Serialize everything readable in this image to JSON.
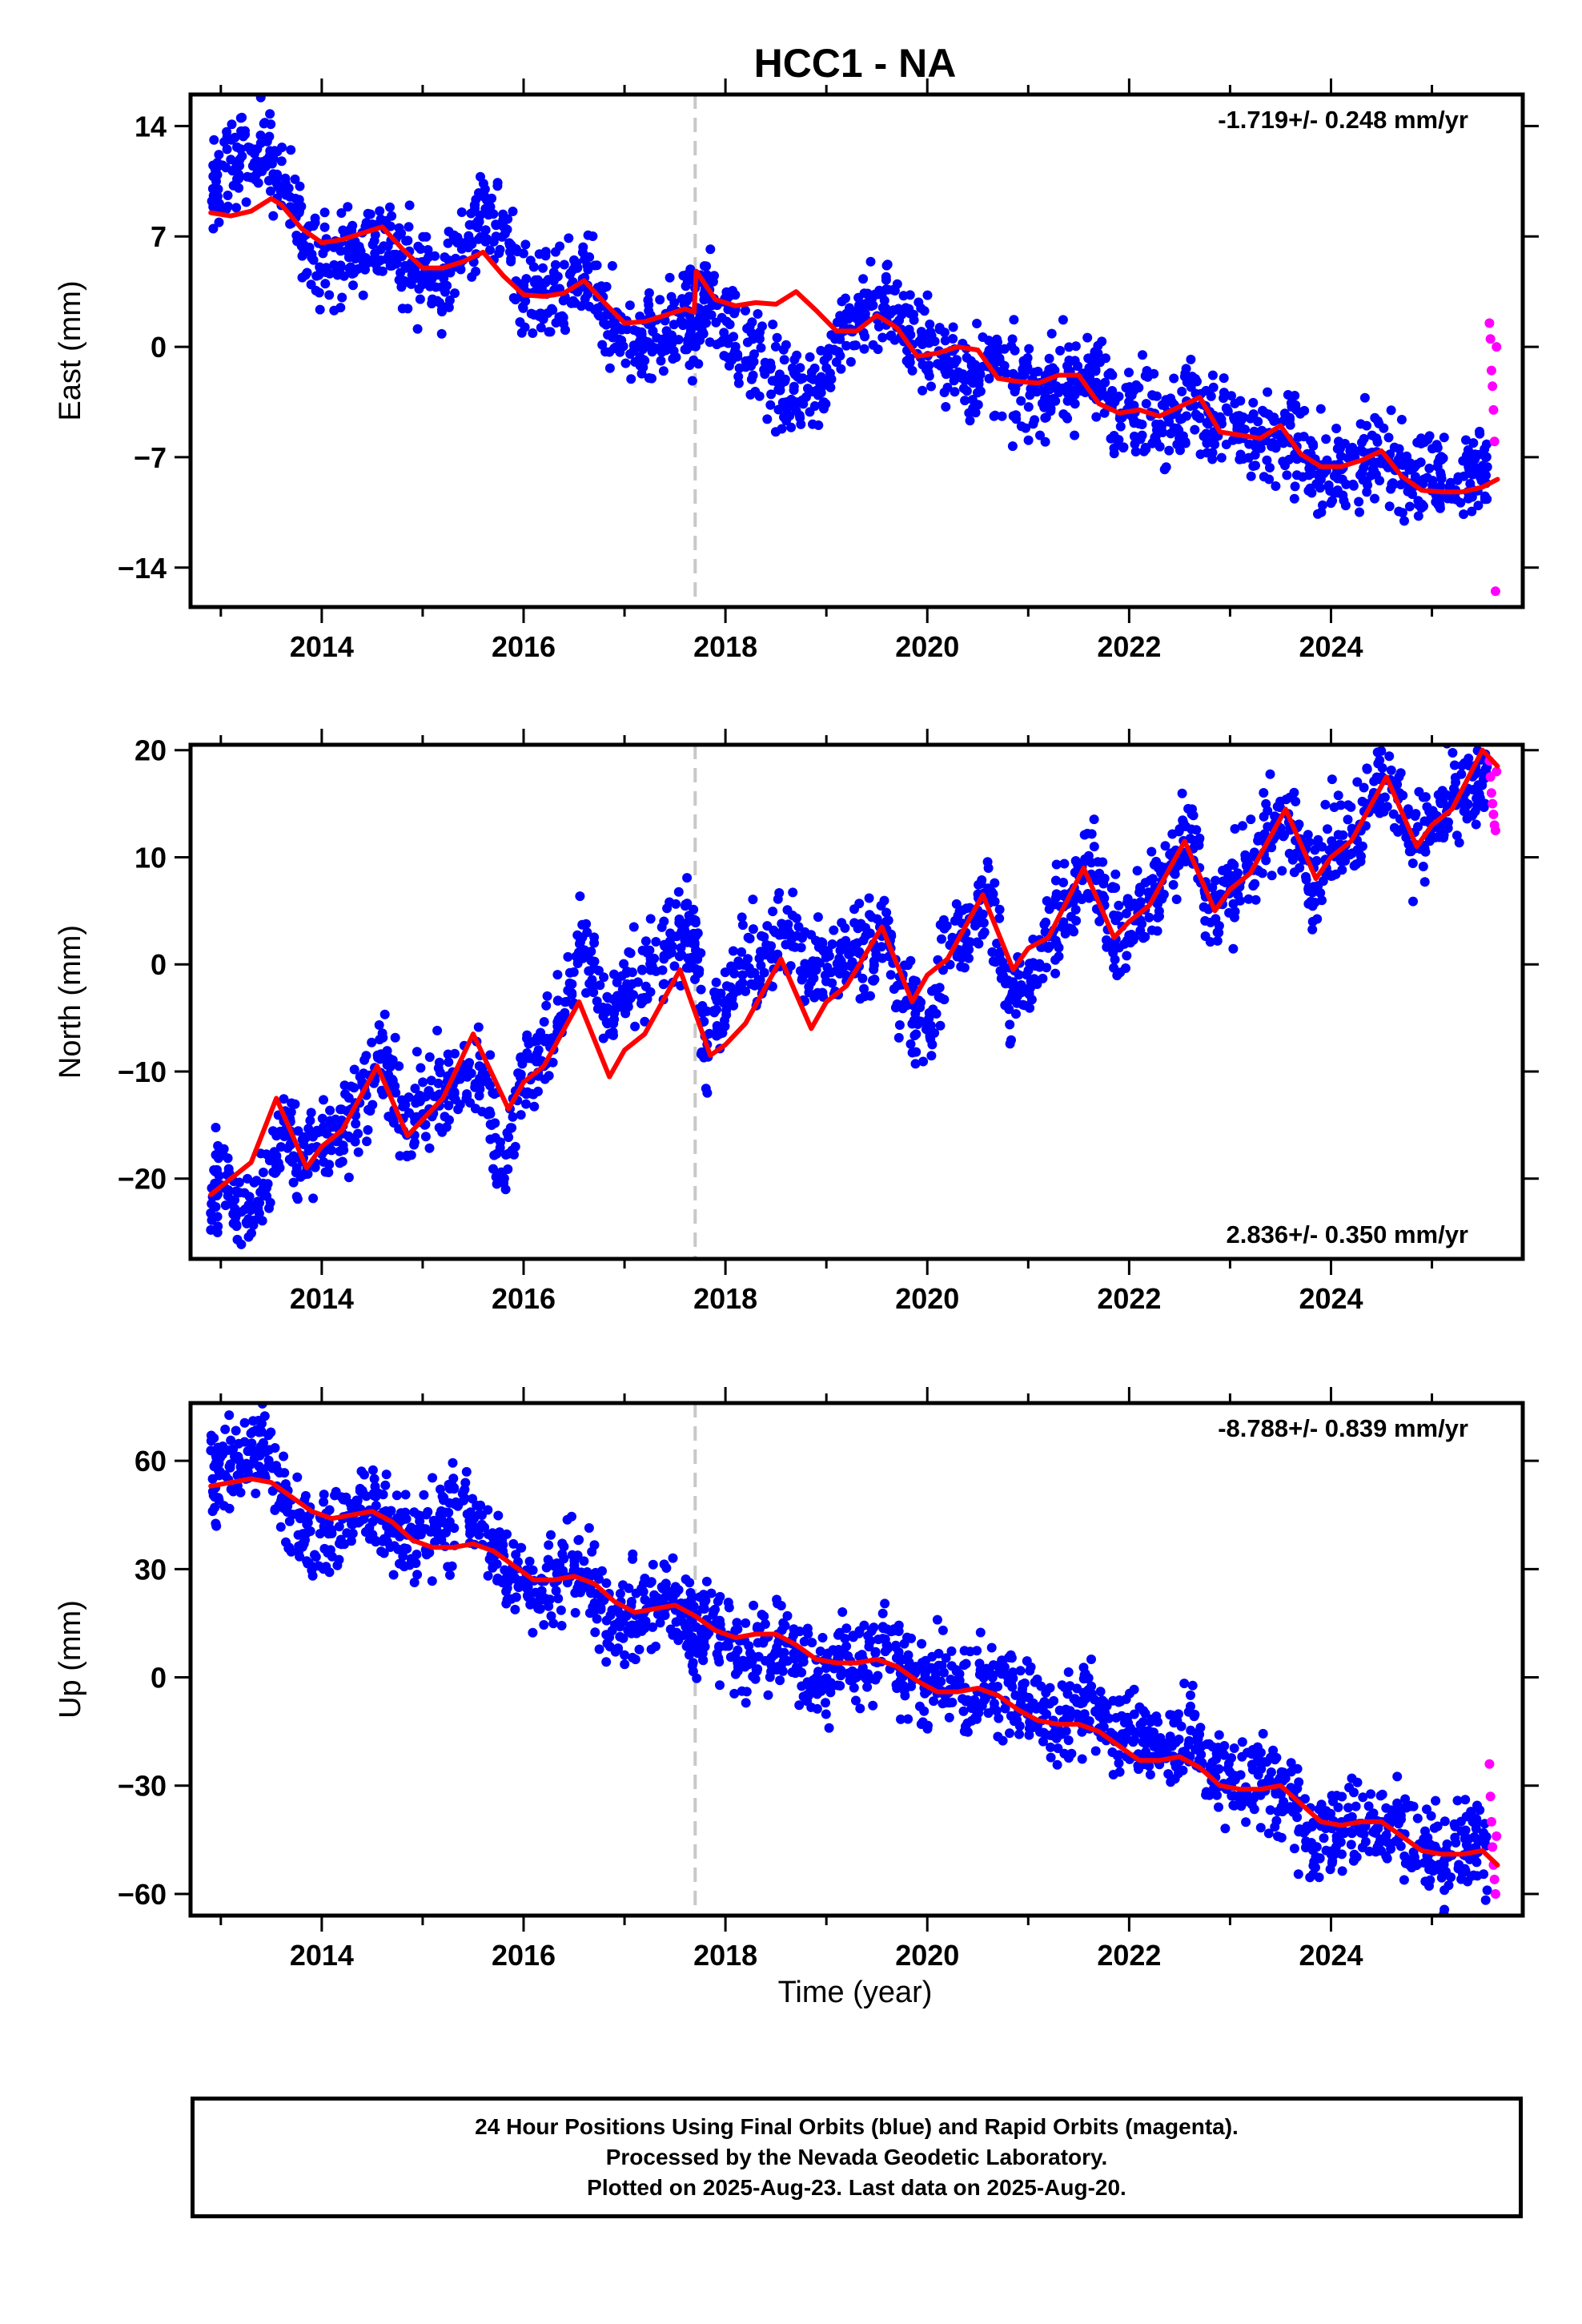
{
  "title": "HCC1 - NA",
  "xlabel": "Time (year)",
  "colors": {
    "final_orbits": "#0000ff",
    "rapid_orbits": "#ff00ff",
    "model": "#ff0000",
    "event_line": "#c8c8c8"
  },
  "footer": {
    "line1": "24 Hour Positions Using Final Orbits (blue) and Rapid Orbits (magenta).",
    "line2": "Processed by the Nevada Geodetic Laboratory.",
    "line3": "Plotted on 2025-Aug-23. Last data on 2025-Aug-20."
  },
  "chart_data": [
    {
      "type": "scatter",
      "panel": "east",
      "ylabel": "East (mm)",
      "rate_label": "-1.719+/- 0.248 mm/yr",
      "rate_position": "top-right",
      "xlim": [
        2012.7,
        2025.9
      ],
      "ylim": [
        -16.5,
        16
      ],
      "xticks": [
        2014,
        2016,
        2018,
        2020,
        2022,
        2024
      ],
      "yticks": [
        14,
        7,
        0,
        -7,
        -14
      ],
      "ytick_labels": [
        "14",
        "7",
        "0",
        "−7",
        "−14"
      ],
      "event_lines": [
        2017.7
      ],
      "series": [
        {
          "name": "Final Orbits (blue)",
          "x": [
            2012.9,
            2013.0,
            2013.2,
            2013.4,
            2013.6,
            2013.8,
            2014.0,
            2014.2,
            2014.4,
            2014.6,
            2014.8,
            2015.0,
            2015.2,
            2015.4,
            2015.6,
            2015.8,
            2016.0,
            2016.2,
            2016.4,
            2016.6,
            2016.8,
            2017.0,
            2017.2,
            2017.4,
            2017.6,
            2017.7,
            2017.8,
            2018.0,
            2018.2,
            2018.4,
            2018.6,
            2018.8,
            2019.0,
            2019.2,
            2019.4,
            2019.6,
            2019.8,
            2020.0,
            2020.2,
            2020.4,
            2020.6,
            2020.8,
            2021.0,
            2021.2,
            2021.4,
            2021.6,
            2021.8,
            2022.0,
            2022.2,
            2022.4,
            2022.6,
            2022.8,
            2023.0,
            2023.2,
            2023.4,
            2023.6,
            2023.8,
            2024.0,
            2024.2,
            2024.4,
            2024.6,
            2024.8,
            2025.0,
            2025.2,
            2025.4,
            2025.55
          ],
          "y": [
            9.5,
            10.5,
            12.5,
            12.5,
            10.5,
            7.5,
            5.5,
            5.5,
            6.5,
            7.0,
            5.5,
            4.5,
            4.5,
            6.0,
            9.0,
            7.0,
            3.5,
            3.0,
            3.0,
            4.5,
            2.0,
            0.8,
            0.5,
            1.0,
            1.8,
            1.0,
            3.5,
            1.5,
            0.0,
            -1.5,
            -2.5,
            -3.0,
            -1.5,
            1.0,
            2.5,
            3.0,
            1.0,
            0.0,
            -1.0,
            -2.0,
            -1.0,
            -2.5,
            -2.5,
            -3.0,
            -2.0,
            -2.0,
            -3.0,
            -4.0,
            -4.0,
            -4.5,
            -3.5,
            -4.5,
            -5.0,
            -6.0,
            -6.5,
            -5.5,
            -7.5,
            -8.5,
            -8.0,
            -7.0,
            -6.5,
            -8.5,
            -8.0,
            -9.0,
            -8.0,
            -7.5
          ]
        },
        {
          "name": "Rapid Orbits (magenta)",
          "x": [
            2025.57,
            2025.58,
            2025.59,
            2025.6,
            2025.61,
            2025.62,
            2025.63,
            2025.64
          ],
          "y": [
            1.5,
            0.5,
            -1.5,
            -2.5,
            -4.0,
            -6.0,
            -15.5,
            0.0
          ]
        },
        {
          "name": "Model",
          "type": "line",
          "x": [
            2012.9,
            2013.1,
            2013.3,
            2013.5,
            2013.6,
            2013.8,
            2014.0,
            2014.2,
            2014.4,
            2014.6,
            2014.8,
            2015.0,
            2015.2,
            2015.4,
            2015.6,
            2015.8,
            2016.0,
            2016.2,
            2016.4,
            2016.6,
            2016.8,
            2017.0,
            2017.2,
            2017.4,
            2017.6,
            2017.69,
            2017.71,
            2017.9,
            2018.1,
            2018.3,
            2018.5,
            2018.7,
            2018.9,
            2019.1,
            2019.3,
            2019.5,
            2019.7,
            2019.9,
            2020.1,
            2020.3,
            2020.5,
            2020.7,
            2020.9,
            2021.1,
            2021.3,
            2021.5,
            2021.7,
            2021.9,
            2022.1,
            2022.3,
            2022.5,
            2022.7,
            2022.9,
            2023.1,
            2023.3,
            2023.5,
            2023.7,
            2023.9,
            2024.1,
            2024.3,
            2024.5,
            2024.7,
            2024.9,
            2025.1,
            2025.3,
            2025.5,
            2025.65
          ],
          "y": [
            8.5,
            8.3,
            8.6,
            9.4,
            9.0,
            7.5,
            6.6,
            6.8,
            7.2,
            7.6,
            6.2,
            5.0,
            5.0,
            5.4,
            6.0,
            4.5,
            3.3,
            3.2,
            3.4,
            4.2,
            2.8,
            1.5,
            1.6,
            2.0,
            2.4,
            2.2,
            4.8,
            3.0,
            2.6,
            2.8,
            2.7,
            3.5,
            2.3,
            1.0,
            1.0,
            2.0,
            1.2,
            -0.6,
            -0.4,
            0.0,
            -0.2,
            -2.0,
            -2.2,
            -2.3,
            -1.8,
            -1.8,
            -3.6,
            -4.2,
            -4.0,
            -4.4,
            -3.8,
            -3.2,
            -5.4,
            -5.6,
            -5.8,
            -5.0,
            -6.8,
            -7.6,
            -7.6,
            -7.2,
            -6.6,
            -8.2,
            -9.1,
            -9.2,
            -9.2,
            -8.9,
            -8.4
          ]
        }
      ]
    },
    {
      "type": "scatter",
      "panel": "north",
      "ylabel": "North (mm)",
      "rate_label": "2.836+/- 0.350 mm/yr",
      "rate_position": "bottom-right",
      "xlim": [
        2012.7,
        2025.9
      ],
      "ylim": [
        -27.5,
        20.5
      ],
      "xticks": [
        2014,
        2016,
        2018,
        2020,
        2022,
        2024
      ],
      "yticks": [
        20,
        10,
        0,
        -10,
        -20
      ],
      "ytick_labels": [
        "20",
        "10",
        "0",
        "−10",
        "−20"
      ],
      "event_lines": [
        2017.7
      ],
      "series": [
        {
          "name": "Final Orbits (blue)",
          "x": [
            2012.9,
            2013.0,
            2013.2,
            2013.4,
            2013.6,
            2013.8,
            2014.0,
            2014.2,
            2014.4,
            2014.6,
            2014.8,
            2015.0,
            2015.2,
            2015.4,
            2015.6,
            2015.8,
            2016.0,
            2016.2,
            2016.4,
            2016.6,
            2016.8,
            2017.0,
            2017.2,
            2017.4,
            2017.6,
            2017.7,
            2017.8,
            2018.0,
            2018.2,
            2018.4,
            2018.6,
            2018.8,
            2019.0,
            2019.2,
            2019.4,
            2019.6,
            2019.8,
            2020.0,
            2020.2,
            2020.4,
            2020.6,
            2020.8,
            2021.0,
            2021.2,
            2021.4,
            2021.6,
            2021.8,
            2022.0,
            2022.2,
            2022.4,
            2022.6,
            2022.8,
            2023.0,
            2023.2,
            2023.4,
            2023.6,
            2023.8,
            2024.0,
            2024.2,
            2024.4,
            2024.6,
            2024.8,
            2025.0,
            2025.2,
            2025.4,
            2025.55
          ],
          "y": [
            -21.0,
            -19.0,
            -24.5,
            -22.5,
            -15.0,
            -18.5,
            -16.0,
            -15.0,
            -13.0,
            -8.5,
            -15.0,
            -13.0,
            -12.0,
            -11.0,
            -10.0,
            -19.0,
            -10.0,
            -8.5,
            -4.0,
            3.0,
            -5.5,
            -2.5,
            -1.0,
            1.5,
            3.0,
            2.0,
            -8.0,
            -3.0,
            -1.0,
            1.0,
            3.5,
            -1.0,
            0.5,
            1.5,
            2.0,
            1.5,
            -3.0,
            -7.0,
            2.0,
            3.5,
            7.0,
            -4.0,
            -2.0,
            3.0,
            6.0,
            10.0,
            3.5,
            3.5,
            6.0,
            9.0,
            13.0,
            5.0,
            7.0,
            9.0,
            13.0,
            13.0,
            8.0,
            11.0,
            12.0,
            16.0,
            18.0,
            11.0,
            13.0,
            14.5,
            16.0,
            16.5
          ]
        },
        {
          "name": "Rapid Orbits (magenta)",
          "x": [
            2025.57,
            2025.58,
            2025.59,
            2025.6,
            2025.61,
            2025.62,
            2025.63,
            2025.64
          ],
          "y": [
            19.0,
            17.5,
            16.0,
            15.0,
            14.0,
            13.0,
            12.5,
            18.0
          ]
        },
        {
          "name": "Model",
          "type": "line",
          "x": [
            2012.9,
            2013.1,
            2013.3,
            2013.55,
            2013.85,
            2014.0,
            2014.2,
            2014.55,
            2014.85,
            2015.0,
            2015.2,
            2015.5,
            2015.85,
            2016.0,
            2016.2,
            2016.55,
            2016.85,
            2017.0,
            2017.2,
            2017.55,
            2017.85,
            2018.0,
            2018.2,
            2018.55,
            2018.85,
            2019.0,
            2019.2,
            2019.55,
            2019.85,
            2020.0,
            2020.2,
            2020.55,
            2020.85,
            2021.0,
            2021.2,
            2021.55,
            2021.85,
            2022.0,
            2022.2,
            2022.55,
            2022.85,
            2023.0,
            2023.2,
            2023.55,
            2023.85,
            2024.0,
            2024.2,
            2024.55,
            2024.85,
            2025.0,
            2025.2,
            2025.5,
            2025.65
          ],
          "y": [
            -21.5,
            -20.0,
            -18.5,
            -12.5,
            -19.0,
            -17.0,
            -15.5,
            -9.5,
            -16.0,
            -14.5,
            -12.5,
            -6.5,
            -13.5,
            -11.0,
            -9.5,
            -3.5,
            -10.5,
            -8.0,
            -6.5,
            -0.5,
            -8.5,
            -7.5,
            -5.5,
            0.5,
            -6.0,
            -3.5,
            -2.0,
            3.5,
            -3.5,
            -1.0,
            0.5,
            6.5,
            -0.5,
            1.5,
            2.5,
            9.0,
            2.5,
            4.0,
            5.5,
            11.5,
            5.0,
            7.0,
            8.5,
            14.5,
            8.0,
            10.0,
            11.5,
            17.5,
            11.0,
            13.0,
            14.5,
            20.0,
            18.5
          ]
        }
      ]
    },
    {
      "type": "scatter",
      "panel": "up",
      "ylabel": "Up (mm)",
      "rate_label": "-8.788+/- 0.839 mm/yr",
      "rate_position": "top-right",
      "xlim": [
        2012.7,
        2025.9
      ],
      "ylim": [
        -66,
        76
      ],
      "xticks": [
        2014,
        2016,
        2018,
        2020,
        2022,
        2024
      ],
      "yticks": [
        60,
        30,
        0,
        -30,
        -60
      ],
      "ytick_labels": [
        "60",
        "30",
        "0",
        "−30",
        "−60"
      ],
      "event_lines": [
        2017.7
      ],
      "series": [
        {
          "name": "Final Orbits (blue)",
          "x": [
            2012.9,
            2013.0,
            2013.2,
            2013.4,
            2013.6,
            2013.8,
            2014.0,
            2014.2,
            2014.4,
            2014.6,
            2014.8,
            2015.0,
            2015.2,
            2015.4,
            2015.6,
            2015.8,
            2016.0,
            2016.2,
            2016.4,
            2016.6,
            2016.8,
            2017.0,
            2017.2,
            2017.4,
            2017.6,
            2017.7,
            2017.8,
            2018.0,
            2018.2,
            2018.4,
            2018.6,
            2018.8,
            2019.0,
            2019.2,
            2019.4,
            2019.6,
            2019.8,
            2020.0,
            2020.2,
            2020.4,
            2020.6,
            2020.8,
            2021.0,
            2021.2,
            2021.4,
            2021.6,
            2021.8,
            2022.0,
            2022.2,
            2022.4,
            2022.6,
            2022.8,
            2023.0,
            2023.2,
            2023.4,
            2023.6,
            2023.8,
            2024.0,
            2024.2,
            2024.4,
            2024.6,
            2024.8,
            2025.0,
            2025.2,
            2025.4,
            2025.55
          ],
          "y": [
            55,
            60,
            58,
            65,
            52,
            40,
            38,
            42,
            48,
            44,
            38,
            40,
            42,
            48,
            42,
            30,
            28,
            25,
            30,
            28,
            20,
            15,
            18,
            22,
            18,
            12,
            16,
            12,
            5,
            10,
            8,
            2,
            2,
            5,
            3,
            8,
            0,
            0,
            -2,
            -5,
            0,
            -5,
            -8,
            -10,
            -12,
            -8,
            -10,
            -15,
            -18,
            -20,
            -15,
            -25,
            -28,
            -30,
            -28,
            -35,
            -45,
            -45,
            -40,
            -42,
            -38,
            -45,
            -48,
            -50,
            -45,
            -48
          ]
        },
        {
          "name": "Rapid Orbits (magenta)",
          "x": [
            2025.57,
            2025.58,
            2025.59,
            2025.6,
            2025.61,
            2025.62,
            2025.63,
            2025.64
          ],
          "y": [
            -24,
            -33,
            -40,
            -47,
            -52,
            -56,
            -60,
            -44
          ]
        },
        {
          "name": "Model",
          "type": "line",
          "x": [
            2012.9,
            2013.1,
            2013.3,
            2013.5,
            2013.7,
            2013.9,
            2014.1,
            2014.3,
            2014.5,
            2014.7,
            2014.9,
            2015.1,
            2015.3,
            2015.5,
            2015.7,
            2015.9,
            2016.1,
            2016.3,
            2016.5,
            2016.7,
            2016.9,
            2017.1,
            2017.3,
            2017.5,
            2017.7,
            2017.9,
            2018.1,
            2018.3,
            2018.5,
            2018.7,
            2018.9,
            2019.1,
            2019.3,
            2019.5,
            2019.7,
            2019.9,
            2020.1,
            2020.3,
            2020.5,
            2020.7,
            2020.9,
            2021.1,
            2021.3,
            2021.5,
            2021.7,
            2021.9,
            2022.1,
            2022.3,
            2022.5,
            2022.7,
            2022.9,
            2023.1,
            2023.3,
            2023.5,
            2023.7,
            2023.9,
            2024.1,
            2024.3,
            2024.5,
            2024.7,
            2024.9,
            2025.1,
            2025.3,
            2025.5,
            2025.65
          ],
          "y": [
            53,
            54,
            55,
            54,
            50,
            46,
            44,
            45,
            46,
            43,
            38,
            36,
            36,
            37,
            35,
            31,
            27,
            27,
            28,
            26,
            21,
            18,
            19,
            20,
            17,
            13,
            11,
            12,
            12,
            9,
            5,
            4,
            4,
            5,
            3,
            -1,
            -4,
            -4,
            -3,
            -5,
            -9,
            -12,
            -13,
            -13,
            -15,
            -19,
            -23,
            -23,
            -22,
            -25,
            -30,
            -31,
            -31,
            -30,
            -35,
            -40,
            -41,
            -40,
            -40,
            -44,
            -48,
            -49,
            -49,
            -48,
            -52
          ]
        }
      ]
    }
  ]
}
